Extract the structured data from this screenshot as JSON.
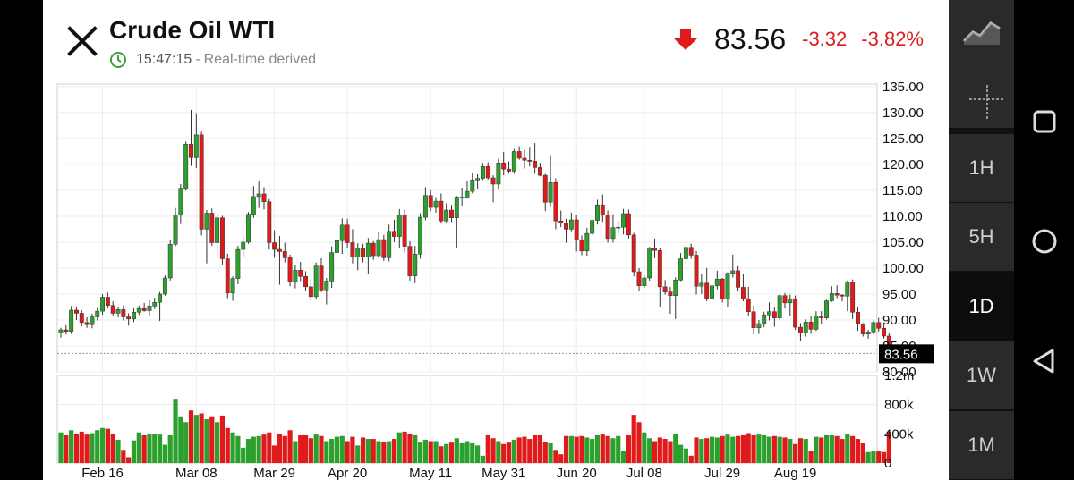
{
  "header": {
    "title": "Crude Oil WTI",
    "time": "15:47:15",
    "separator": "-",
    "realtime_label": "Real-time derived",
    "price": "83.56",
    "change": "-3.32",
    "change_pct": "-3.82%",
    "down_color": "#e01a1a"
  },
  "right_panel": {
    "chart_type_icon": "line-chart-icon",
    "crosshair_icon": "crosshair-icon",
    "intervals": [
      "1H",
      "5H",
      "1D",
      "1W",
      "1M"
    ],
    "selected": "1D"
  },
  "nav": {
    "icons": [
      "square-icon",
      "circle-icon",
      "triangle-back-icon"
    ]
  },
  "chart_data": {
    "type": "candlestick",
    "up_color": "#2ca02c",
    "down_color": "#e01a1a",
    "x_labels": [
      "Feb 16",
      "Mar 08",
      "Mar 29",
      "Apr 20",
      "May 11",
      "May 31",
      "Jun 20",
      "Jul 08",
      "Jul 29",
      "Aug 19"
    ],
    "price_axis": {
      "ticks": [
        "135.00",
        "130.00",
        "125.00",
        "120.00",
        "115.00",
        "110.00",
        "105.00",
        "100.00",
        "95.00",
        "90.00",
        "85.00",
        "80.00"
      ],
      "range": [
        80,
        135.5
      ]
    },
    "volume_axis": {
      "ticks": [
        "1.2m",
        "800k",
        "400k",
        "0"
      ],
      "range": [
        0,
        1200000
      ]
    },
    "last_price": 83.56,
    "last_price_label": "83.56",
    "candles": [
      [
        87.5,
        88.5,
        86.6,
        88.1,
        420000
      ],
      [
        88.1,
        89.0,
        87.2,
        87.8,
        380000
      ],
      [
        87.8,
        92.7,
        87.3,
        91.9,
        450000
      ],
      [
        91.9,
        92.6,
        90.0,
        91.3,
        400000
      ],
      [
        91.3,
        91.9,
        88.8,
        89.5,
        430000
      ],
      [
        89.5,
        90.5,
        88.5,
        89.1,
        390000
      ],
      [
        89.1,
        91.2,
        88.4,
        90.6,
        410000
      ],
      [
        90.6,
        92.3,
        89.9,
        91.7,
        450000
      ],
      [
        91.7,
        95.0,
        91.0,
        94.4,
        480000
      ],
      [
        94.4,
        95.3,
        92.2,
        92.8,
        470000
      ],
      [
        92.8,
        93.6,
        90.7,
        91.3,
        400000
      ],
      [
        91.3,
        92.6,
        90.5,
        92.0,
        320000
      ],
      [
        92.0,
        92.8,
        89.9,
        90.6,
        180000
      ],
      [
        90.6,
        91.3,
        88.9,
        90.2,
        80000
      ],
      [
        90.2,
        92.2,
        89.6,
        91.5,
        310000
      ],
      [
        91.5,
        92.8,
        91.0,
        92.2,
        420000
      ],
      [
        92.2,
        93.3,
        91.6,
        91.8,
        380000
      ],
      [
        91.8,
        93.8,
        90.9,
        92.7,
        400000
      ],
      [
        92.7,
        94.3,
        92.1,
        93.4,
        400000
      ],
      [
        93.4,
        95.4,
        89.8,
        95.0,
        390000
      ],
      [
        95.0,
        98.6,
        94.7,
        98.1,
        250000
      ],
      [
        98.1,
        105.5,
        97.6,
        104.6,
        380000
      ],
      [
        104.6,
        111.6,
        104.2,
        110.2,
        880000
      ],
      [
        110.2,
        116.2,
        108.5,
        115.4,
        640000
      ],
      [
        115.4,
        124.4,
        114.9,
        123.9,
        560000
      ],
      [
        123.9,
        130.5,
        119.7,
        121.3,
        720000
      ],
      [
        121.3,
        129.9,
        119.3,
        125.7,
        660000
      ],
      [
        125.7,
        126.3,
        106.3,
        107.5,
        680000
      ],
      [
        107.5,
        111.2,
        100.9,
        110.6,
        600000
      ],
      [
        110.6,
        111.5,
        104.3,
        104.9,
        640000
      ],
      [
        104.9,
        110.5,
        101.9,
        109.7,
        560000
      ],
      [
        109.7,
        110.1,
        100.7,
        101.8,
        650000
      ],
      [
        101.8,
        102.8,
        94.2,
        95.2,
        480000
      ],
      [
        95.2,
        98.4,
        93.7,
        98.0,
        420000
      ],
      [
        98.0,
        104.3,
        96.9,
        103.6,
        370000
      ],
      [
        103.6,
        106.1,
        102.1,
        105.0,
        210000
      ],
      [
        105.0,
        110.8,
        104.7,
        110.4,
        330000
      ],
      [
        110.4,
        115.8,
        109.7,
        113.8,
        360000
      ],
      [
        113.8,
        116.7,
        111.6,
        114.3,
        370000
      ],
      [
        114.3,
        115.6,
        111.3,
        112.8,
        390000
      ],
      [
        112.8,
        113.3,
        103.6,
        104.9,
        420000
      ],
      [
        104.9,
        107.3,
        102.0,
        103.6,
        240000
      ],
      [
        103.6,
        106.2,
        96.8,
        103.2,
        400000
      ],
      [
        103.2,
        104.9,
        101.1,
        102.0,
        370000
      ],
      [
        102.0,
        102.6,
        96.5,
        97.4,
        450000
      ],
      [
        97.4,
        100.6,
        96.1,
        99.6,
        300000
      ],
      [
        99.6,
        101.2,
        97.5,
        98.4,
        380000
      ],
      [
        98.4,
        99.4,
        95.6,
        96.4,
        380000
      ],
      [
        96.4,
        98.0,
        93.6,
        94.5,
        340000
      ],
      [
        94.5,
        101.1,
        94.1,
        100.4,
        390000
      ],
      [
        100.4,
        101.9,
        95.4,
        95.8,
        370000
      ],
      [
        95.8,
        98.1,
        93.0,
        97.5,
        300000
      ],
      [
        97.5,
        104.2,
        96.2,
        103.0,
        330000
      ],
      [
        103.0,
        106.2,
        102.1,
        105.3,
        360000
      ],
      [
        105.3,
        109.6,
        102.7,
        108.3,
        370000
      ],
      [
        108.3,
        109.5,
        103.8,
        104.9,
        300000
      ],
      [
        104.9,
        107.5,
        100.9,
        102.1,
        360000
      ],
      [
        102.1,
        104.8,
        99.6,
        103.8,
        240000
      ],
      [
        103.8,
        104.7,
        101.1,
        102.2,
        350000
      ],
      [
        102.2,
        105.8,
        98.8,
        104.8,
        330000
      ],
      [
        104.8,
        105.2,
        101.6,
        102.4,
        330000
      ],
      [
        102.4,
        106.9,
        102.0,
        105.5,
        300000
      ],
      [
        105.5,
        106.4,
        101.4,
        102.0,
        290000
      ],
      [
        102.0,
        108.4,
        101.3,
        107.1,
        300000
      ],
      [
        107.1,
        109.3,
        105.0,
        106.1,
        330000
      ],
      [
        106.1,
        111.4,
        103.8,
        110.3,
        420000
      ],
      [
        110.3,
        111.3,
        103.0,
        104.2,
        430000
      ],
      [
        104.2,
        105.2,
        97.6,
        98.5,
        400000
      ],
      [
        98.5,
        104.3,
        97.1,
        102.7,
        380000
      ],
      [
        102.7,
        110.6,
        101.8,
        109.8,
        280000
      ],
      [
        109.8,
        115.6,
        109.2,
        114.0,
        320000
      ],
      [
        114.0,
        115.0,
        111.0,
        111.7,
        300000
      ],
      [
        111.7,
        113.7,
        110.7,
        112.9,
        300000
      ],
      [
        112.9,
        114.4,
        108.6,
        109.1,
        230000
      ],
      [
        109.1,
        112.5,
        108.7,
        111.2,
        260000
      ],
      [
        111.2,
        112.2,
        108.9,
        109.7,
        280000
      ],
      [
        109.7,
        113.9,
        103.8,
        113.7,
        340000
      ],
      [
        113.7,
        115.5,
        112.0,
        113.7,
        270000
      ],
      [
        113.7,
        116.8,
        113.4,
        114.8,
        300000
      ],
      [
        114.8,
        118.3,
        114.4,
        117.0,
        270000
      ],
      [
        117.0,
        118.1,
        115.2,
        117.3,
        240000
      ],
      [
        117.3,
        120.3,
        117.0,
        119.6,
        100000
      ],
      [
        119.6,
        120.4,
        117.1,
        117.4,
        380000
      ],
      [
        117.4,
        117.9,
        112.7,
        116.2,
        340000
      ],
      [
        116.2,
        121.1,
        115.2,
        120.3,
        300000
      ],
      [
        120.3,
        122.4,
        117.9,
        119.1,
        260000
      ],
      [
        119.1,
        120.6,
        118.2,
        118.7,
        280000
      ],
      [
        118.7,
        123.0,
        118.2,
        122.5,
        320000
      ],
      [
        122.5,
        123.5,
        120.9,
        121.2,
        350000
      ],
      [
        121.2,
        122.8,
        119.2,
        120.8,
        360000
      ],
      [
        120.8,
        123.2,
        119.6,
        120.6,
        330000
      ],
      [
        120.6,
        124.1,
        118.2,
        119.4,
        380000
      ],
      [
        119.4,
        120.3,
        117.7,
        117.9,
        380000
      ],
      [
        117.9,
        118.2,
        111.0,
        112.7,
        290000
      ],
      [
        112.7,
        121.8,
        111.8,
        116.5,
        270000
      ],
      [
        116.5,
        117.3,
        107.5,
        109.1,
        180000
      ],
      [
        109.1,
        111.1,
        107.9,
        108.7,
        120000
      ],
      [
        108.7,
        109.5,
        104.9,
        107.5,
        370000
      ],
      [
        107.5,
        110.7,
        107.1,
        109.3,
        370000
      ],
      [
        109.3,
        110.3,
        103.2,
        105.4,
        360000
      ],
      [
        105.4,
        106.3,
        102.5,
        103.3,
        370000
      ],
      [
        103.3,
        107.8,
        102.4,
        106.7,
        350000
      ],
      [
        106.7,
        109.4,
        106.2,
        109.2,
        330000
      ],
      [
        109.2,
        113.2,
        108.4,
        112.2,
        380000
      ],
      [
        112.2,
        114.2,
        108.9,
        110.3,
        390000
      ],
      [
        110.3,
        111.1,
        104.9,
        105.7,
        370000
      ],
      [
        105.7,
        110.4,
        104.9,
        107.8,
        340000
      ],
      [
        107.8,
        109.1,
        106.7,
        107.9,
        370000
      ],
      [
        107.9,
        111.4,
        106.5,
        110.5,
        160000
      ],
      [
        110.5,
        111.3,
        105.7,
        106.4,
        380000
      ],
      [
        106.4,
        106.8,
        98.4,
        99.3,
        660000
      ],
      [
        99.3,
        100.0,
        95.5,
        96.6,
        560000
      ],
      [
        96.6,
        98.6,
        96.2,
        98.1,
        420000
      ],
      [
        98.1,
        104.1,
        97.6,
        103.9,
        340000
      ],
      [
        103.9,
        105.7,
        101.9,
        103.4,
        300000
      ],
      [
        103.4,
        103.8,
        92.6,
        96.4,
        350000
      ],
      [
        96.4,
        97.7,
        94.9,
        95.4,
        330000
      ],
      [
        95.4,
        96.4,
        91.2,
        94.7,
        300000
      ],
      [
        94.7,
        98.2,
        90.2,
        97.7,
        400000
      ],
      [
        97.7,
        102.9,
        97.5,
        101.8,
        250000
      ],
      [
        101.8,
        104.5,
        100.6,
        104.0,
        200000
      ],
      [
        104.0,
        104.7,
        101.8,
        102.5,
        100000
      ],
      [
        102.5,
        103.3,
        94.9,
        96.5,
        350000
      ],
      [
        96.5,
        98.8,
        95.0,
        97.1,
        330000
      ],
      [
        97.1,
        100.0,
        93.6,
        94.2,
        340000
      ],
      [
        94.2,
        97.2,
        93.7,
        96.6,
        360000
      ],
      [
        96.6,
        99.5,
        95.9,
        97.9,
        350000
      ],
      [
        97.9,
        98.1,
        93.4,
        94.0,
        370000
      ],
      [
        94.0,
        99.2,
        92.4,
        99.0,
        390000
      ],
      [
        99.0,
        102.6,
        98.2,
        99.5,
        360000
      ],
      [
        99.5,
        100.4,
        95.5,
        96.3,
        370000
      ],
      [
        96.3,
        98.9,
        93.6,
        94.1,
        380000
      ],
      [
        94.1,
        96.4,
        90.8,
        91.6,
        410000
      ],
      [
        91.6,
        92.8,
        87.2,
        88.5,
        380000
      ],
      [
        88.5,
        90.0,
        87.3,
        89.3,
        390000
      ],
      [
        89.3,
        91.6,
        88.6,
        91.0,
        380000
      ],
      [
        91.0,
        93.4,
        89.9,
        91.6,
        360000
      ],
      [
        91.6,
        92.4,
        88.7,
        90.4,
        370000
      ],
      [
        90.4,
        94.9,
        90.0,
        94.7,
        360000
      ],
      [
        94.7,
        95.2,
        92.2,
        93.3,
        350000
      ],
      [
        93.3,
        94.9,
        90.8,
        94.1,
        330000
      ],
      [
        94.1,
        94.7,
        88.1,
        88.6,
        260000
      ],
      [
        88.6,
        89.4,
        86.0,
        87.5,
        340000
      ],
      [
        87.5,
        90.1,
        86.8,
        89.6,
        330000
      ],
      [
        89.6,
        90.7,
        87.3,
        88.2,
        160000
      ],
      [
        88.2,
        91.7,
        87.9,
        90.8,
        360000
      ],
      [
        90.8,
        91.7,
        89.3,
        90.4,
        350000
      ],
      [
        90.4,
        93.9,
        90.1,
        93.7,
        380000
      ],
      [
        93.7,
        96.5,
        93.5,
        95.1,
        380000
      ],
      [
        95.1,
        96.7,
        94.2,
        94.8,
        370000
      ],
      [
        94.8,
        95.0,
        93.6,
        94.6,
        330000
      ],
      [
        94.6,
        97.6,
        91.7,
        97.3,
        400000
      ],
      [
        97.3,
        97.8,
        90.2,
        91.5,
        370000
      ],
      [
        91.5,
        92.6,
        87.9,
        89.2,
        330000
      ],
      [
        89.2,
        89.4,
        86.8,
        87.3,
        270000
      ],
      [
        87.3,
        88.1,
        86.4,
        87.7,
        150000
      ],
      [
        87.7,
        89.8,
        87.3,
        89.5,
        160000
      ],
      [
        89.5,
        90.4,
        87.8,
        88.4,
        170000
      ],
      [
        88.4,
        89.2,
        86.4,
        86.9,
        150000
      ],
      [
        86.9,
        87.5,
        82.8,
        83.56,
        430000
      ]
    ]
  }
}
